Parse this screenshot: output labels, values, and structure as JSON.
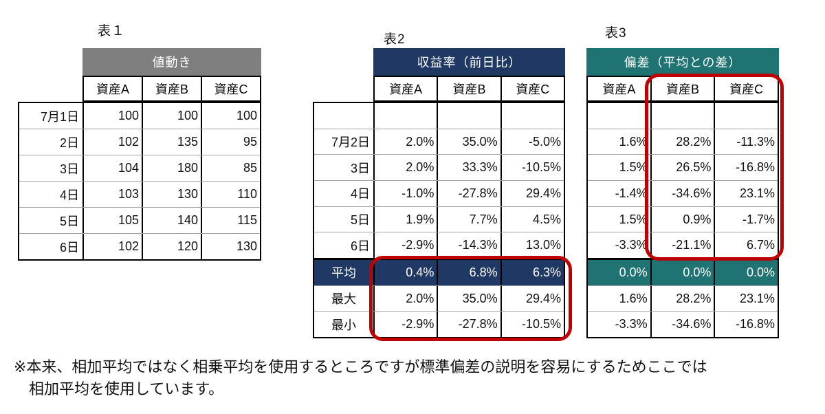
{
  "canvas": {
    "background": "#ffffff",
    "highlight_color": "#c00000"
  },
  "tables": [
    {
      "id": "t1",
      "title": "表１",
      "band": {
        "label": "値動き",
        "color": "#7f7f7f"
      },
      "columns": [
        "資産A",
        "資産B",
        "資産C"
      ],
      "has_label_column": true,
      "rows": [
        {
          "label": "7月1日",
          "values": [
            "100",
            "100",
            "100"
          ],
          "type": "date"
        },
        {
          "label": "2日",
          "values": [
            "102",
            "135",
            "95"
          ],
          "type": "date"
        },
        {
          "label": "3日",
          "values": [
            "104",
            "180",
            "85"
          ],
          "type": "date"
        },
        {
          "label": "4日",
          "values": [
            "103",
            "130",
            "110"
          ],
          "type": "date"
        },
        {
          "label": "5日",
          "values": [
            "105",
            "140",
            "115"
          ],
          "type": "date"
        },
        {
          "label": "6日",
          "values": [
            "102",
            "120",
            "130"
          ],
          "type": "date"
        }
      ]
    },
    {
      "id": "t2",
      "title": "表2",
      "band": {
        "label": "収益率（前日比）",
        "color": "#1f3864"
      },
      "columns": [
        "資産A",
        "資産B",
        "資産C"
      ],
      "has_label_column": true,
      "rows": [
        {
          "label": "",
          "values": [
            "",
            "",
            ""
          ],
          "type": "date"
        },
        {
          "label": "7月2日",
          "values": [
            "2.0%",
            "35.0%",
            "-5.0%"
          ],
          "type": "date"
        },
        {
          "label": "3日",
          "values": [
            "2.0%",
            "33.3%",
            "-10.5%"
          ],
          "type": "date"
        },
        {
          "label": "4日",
          "values": [
            "-1.0%",
            "-27.8%",
            "29.4%"
          ],
          "type": "date"
        },
        {
          "label": "5日",
          "values": [
            "1.9%",
            "7.7%",
            "4.5%"
          ],
          "type": "date"
        },
        {
          "label": "6日",
          "values": [
            "-2.9%",
            "-14.3%",
            "13.0%"
          ],
          "type": "date"
        },
        {
          "label": "平均",
          "values": [
            "0.4%",
            "6.8%",
            "6.3%"
          ],
          "type": "summary-accent"
        },
        {
          "label": "最大",
          "values": [
            "2.0%",
            "35.0%",
            "29.4%"
          ],
          "type": "summary"
        },
        {
          "label": "最小",
          "values": [
            "-2.9%",
            "-27.8%",
            "-10.5%"
          ],
          "type": "summary"
        }
      ]
    },
    {
      "id": "t3",
      "title": "表3",
      "band": {
        "label": "偏差（平均との差）",
        "color": "#1f7473"
      },
      "columns": [
        "資産A",
        "資産B",
        "資産C"
      ],
      "has_label_column": false,
      "rows": [
        {
          "values": [
            "",
            "",
            ""
          ],
          "type": "date"
        },
        {
          "values": [
            "1.6%",
            "28.2%",
            "-11.3%"
          ],
          "type": "date"
        },
        {
          "values": [
            "1.5%",
            "26.5%",
            "-16.8%"
          ],
          "type": "date"
        },
        {
          "values": [
            "-1.4%",
            "-34.6%",
            "23.1%"
          ],
          "type": "date"
        },
        {
          "values": [
            "1.5%",
            "0.9%",
            "-1.7%"
          ],
          "type": "date"
        },
        {
          "values": [
            "-3.3%",
            "-21.1%",
            "6.7%"
          ],
          "type": "date"
        },
        {
          "values": [
            "0.0%",
            "0.0%",
            "0.0%"
          ],
          "type": "summary-accent"
        },
        {
          "values": [
            "1.6%",
            "28.2%",
            "23.1%"
          ],
          "type": "summary"
        },
        {
          "values": [
            "-3.3%",
            "-34.6%",
            "-16.8%"
          ],
          "type": "summary"
        }
      ]
    }
  ],
  "footnote": {
    "line1": "※本来、相加平均ではなく相乗平均を使用するところですが標準偏差の説明を容易にするためここでは",
    "line2": "相加平均を使用しています。"
  }
}
